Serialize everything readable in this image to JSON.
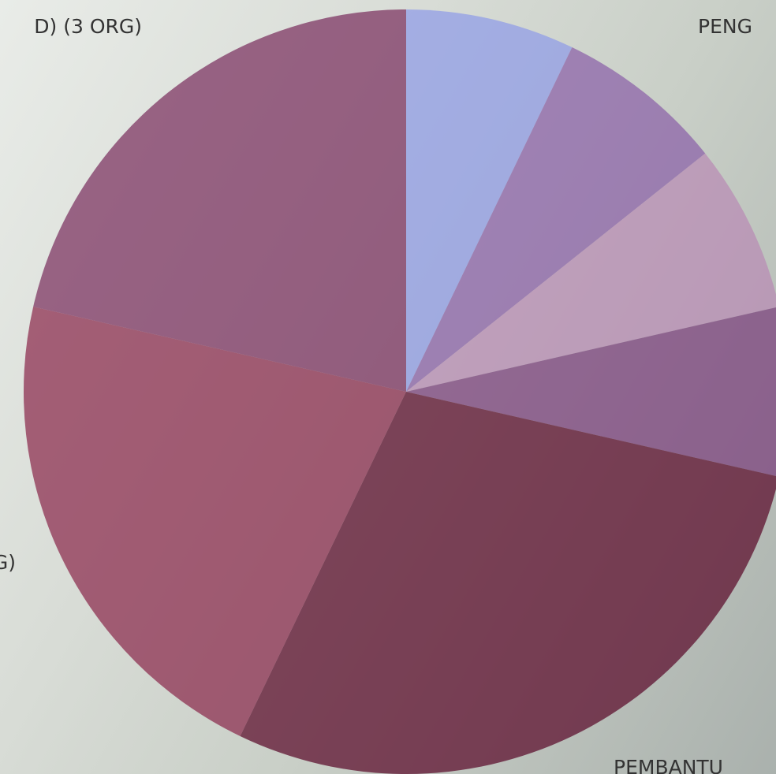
{
  "chart_data": {
    "type": "pie",
    "categories": [
      "PENG",
      null,
      null,
      null,
      "PEMBANTU",
      "G)",
      "D) (3 ORG)"
    ],
    "values": [
      1,
      1,
      1,
      1,
      4,
      3,
      3
    ],
    "colors": [
      "#8f9be8",
      "#8a5fa8",
      "#b98ab4",
      "#7a3f7c",
      "#5a0a2a",
      "#8a2a4c",
      "#7a2f5e"
    ]
  }
}
